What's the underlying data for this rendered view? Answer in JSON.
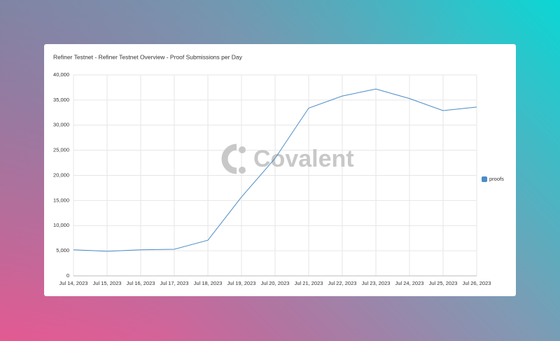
{
  "chart_data": {
    "type": "line",
    "title": "Refiner Testnet - Refiner Testnet Overview - Proof Submissions per Day",
    "watermark": "Covalent",
    "categories": [
      "Jul 14, 2023",
      "Jul 15, 2023",
      "Jul 16, 2023",
      "Jul 17, 2023",
      "Jul 18, 2023",
      "Jul 19, 2023",
      "Jul 20, 2023",
      "Jul 21, 2023",
      "Jul 22, 2023",
      "Jul 23, 2023",
      "Jul 24, 2023",
      "Jul 25, 2023",
      "Jul 26, 2023"
    ],
    "series": [
      {
        "name": "proofs",
        "color": "#4a8cc8",
        "values": [
          5200,
          4900,
          5200,
          5300,
          7100,
          15700,
          23400,
          33400,
          35800,
          37200,
          35300,
          32900,
          33600
        ]
      }
    ],
    "ylim": [
      0,
      40000
    ],
    "yticks": [
      0,
      {
        "value": 5000,
        "label": "5,000"
      },
      {
        "value": 10000,
        "label": "10,000"
      },
      {
        "value": 15000,
        "label": "15,000"
      },
      {
        "value": 20000,
        "label": "20,000"
      },
      {
        "value": 25000,
        "label": "25,000"
      },
      {
        "value": 30000,
        "label": "30,000"
      },
      {
        "value": 35000,
        "label": "35,000"
      },
      {
        "value": 40000,
        "label": "40,000"
      }
    ],
    "grid": true,
    "legend": "right"
  }
}
